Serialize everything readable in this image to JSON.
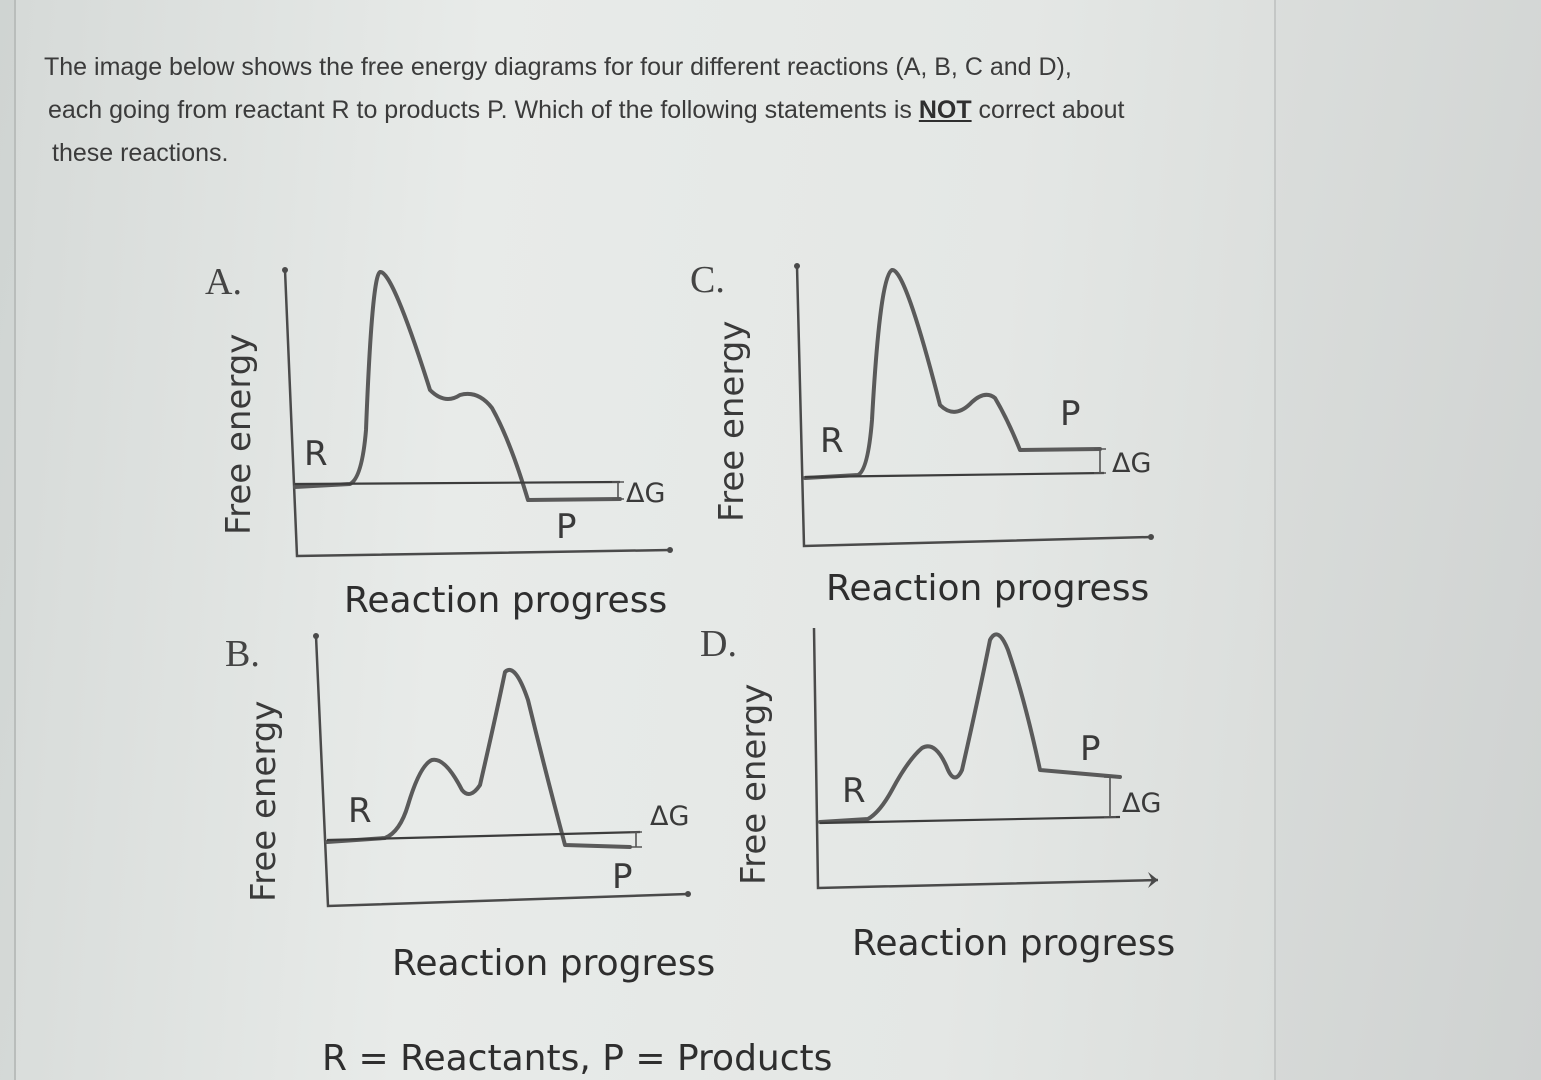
{
  "question": {
    "line1": "The image below shows the free energy diagrams for four different reactions (A, B, C and D),",
    "line2_before": "each going from reactant R to products P. Which of the following statements is ",
    "line2_emphasis": "NOT",
    "line2_after": " correct about",
    "line3": "these reactions."
  },
  "panels": [
    {
      "letter": "A.",
      "ylabel": "Free energy",
      "xlabel": "Reaction progress",
      "reactant": "R",
      "product": "P",
      "delta": "ΔG"
    },
    {
      "letter": "B.",
      "ylabel": "Free energy",
      "xlabel": "Reaction progress",
      "reactant": "R",
      "product": "P",
      "delta": "ΔG"
    },
    {
      "letter": "C.",
      "ylabel": "Free energy",
      "xlabel": "Reaction progress",
      "reactant": "R",
      "product": "P",
      "delta": "ΔG"
    },
    {
      "letter": "D.",
      "ylabel": "Free energy",
      "xlabel": "Reaction progress",
      "reactant": "R",
      "product": "P",
      "delta": "ΔG"
    }
  ],
  "legend": "R = Reactants, P = Products"
}
